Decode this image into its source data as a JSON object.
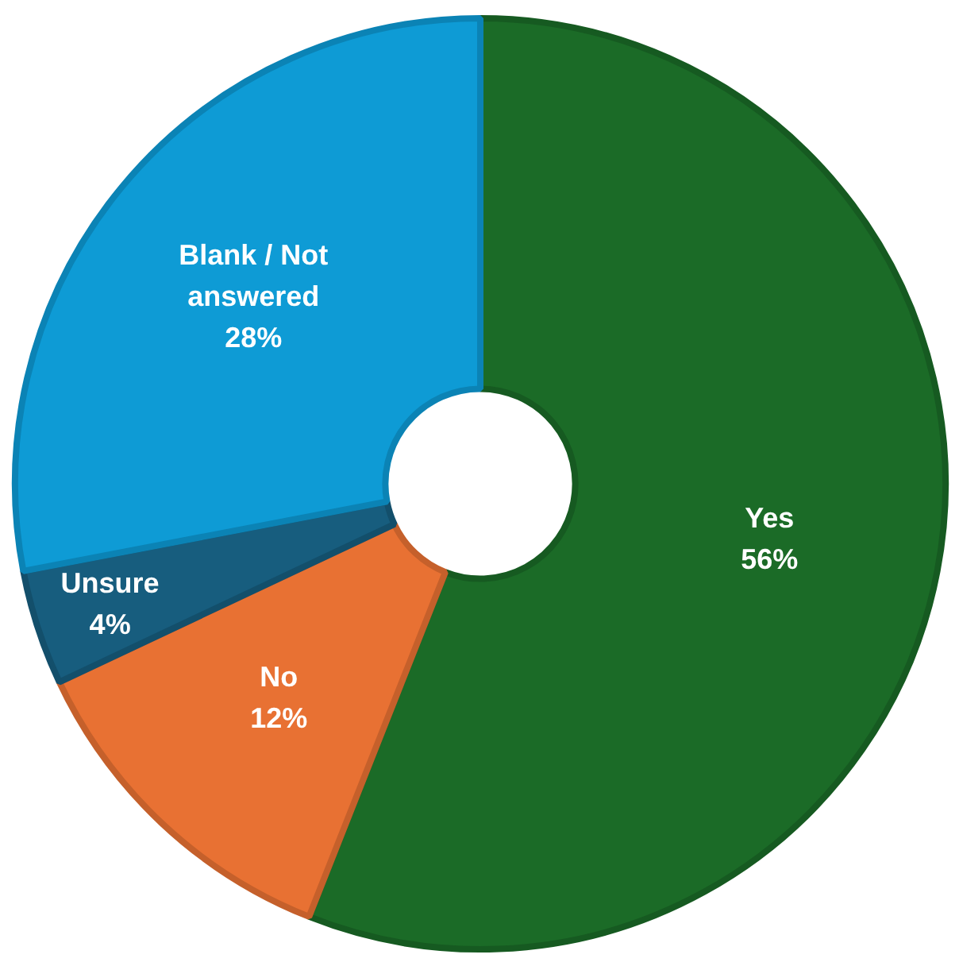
{
  "chart_data": {
    "type": "donut",
    "categories": [
      "Yes",
      "No",
      "Unsure",
      "Blank / Not answered"
    ],
    "values": [
      56,
      12,
      4,
      28
    ],
    "value_labels": [
      "56%",
      "12%",
      "4%",
      "28%"
    ],
    "colors": [
      "#1b6b27",
      "#e87133",
      "#175d7e",
      "#0e9bd5"
    ]
  }
}
